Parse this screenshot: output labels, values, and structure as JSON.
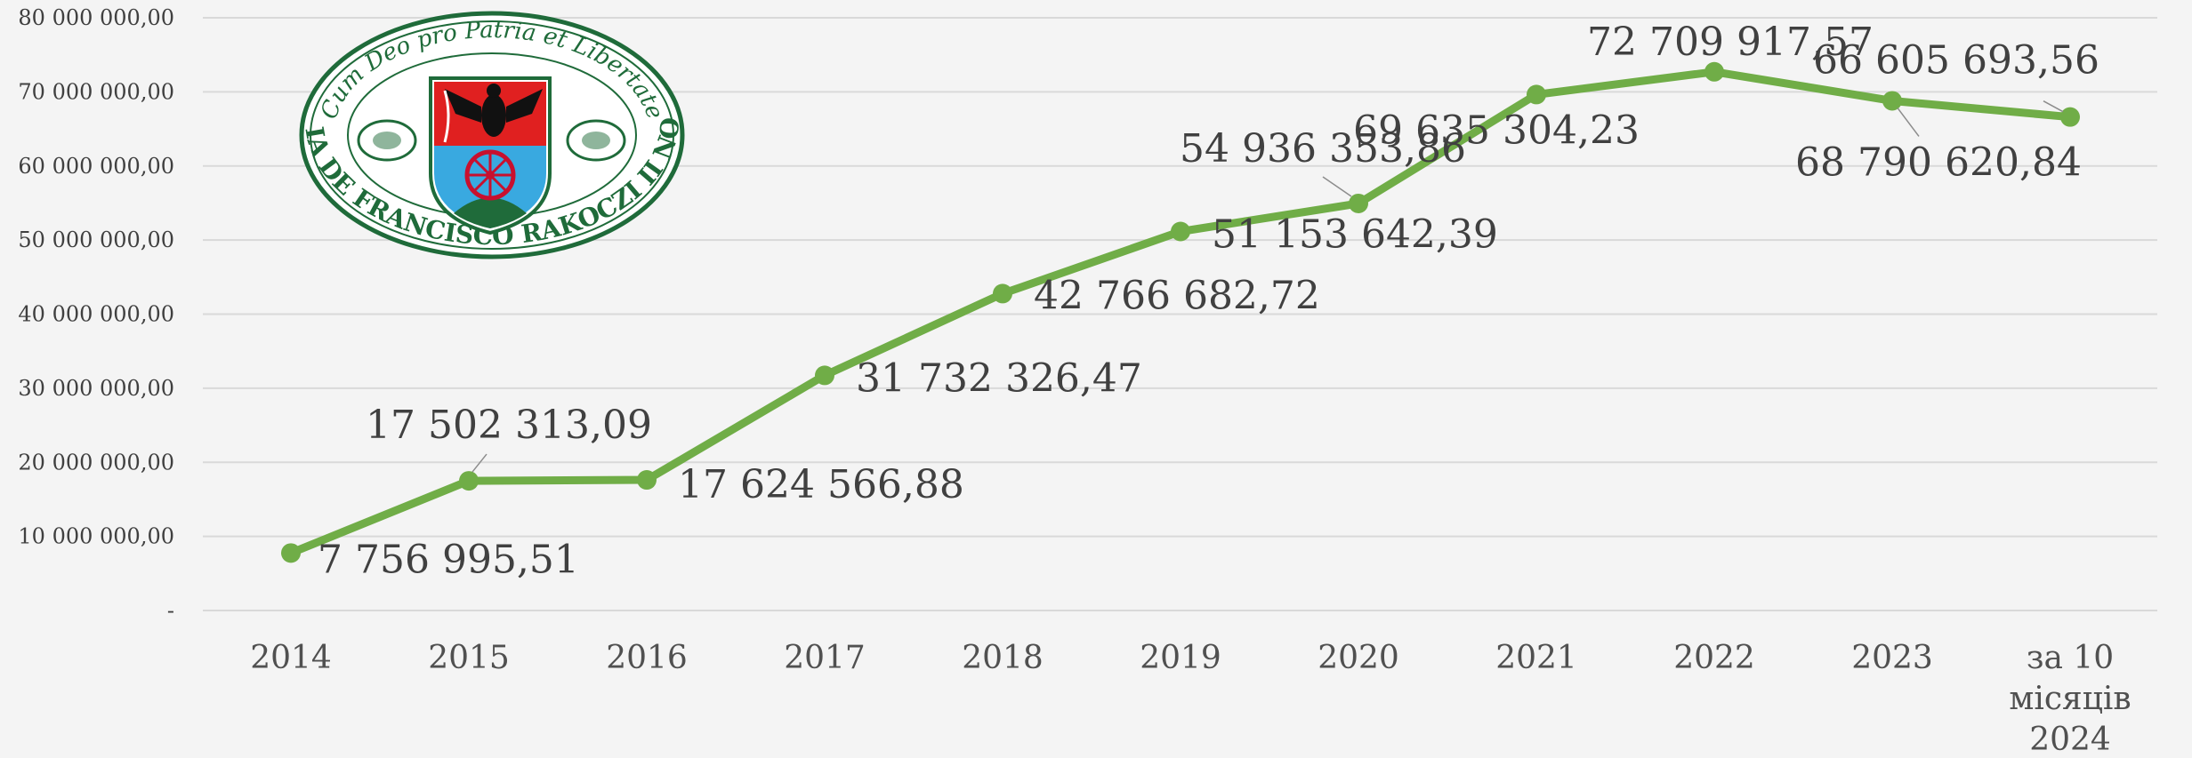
{
  "chart_data": {
    "type": "line",
    "title": "",
    "xlabel": "",
    "ylabel": "",
    "categories": [
      "2014",
      "2015",
      "2016",
      "2017",
      "2018",
      "2019",
      "2020",
      "2021",
      "2022",
      "2023",
      "за 10 місяців 2024"
    ],
    "series": [
      {
        "values": [
          7756995.51,
          17502313.09,
          17624566.88,
          31732326.47,
          42766682.72,
          51153642.39,
          54936353.86,
          69635304.23,
          72709917.57,
          68790620.84,
          66605693.56
        ],
        "labels": [
          "7 756 995,51",
          "17 502 313,09",
          "17 624 566,88",
          "31 732 326,47",
          "42 766 682,72",
          "51 153 642,39",
          "54 936 353,86",
          "69 635 304,23",
          "72 709 917,57",
          "68 790 620,84",
          "66 605 693,56"
        ],
        "color": "#70ad47"
      }
    ],
    "ylim": [
      0,
      80000000
    ],
    "y_ticks": [
      {
        "value": 0,
        "label": "-"
      },
      {
        "value": 10000000,
        "label": "10 000 000,00"
      },
      {
        "value": 20000000,
        "label": "20 000 000,00"
      },
      {
        "value": 30000000,
        "label": "30 000 000,00"
      },
      {
        "value": 40000000,
        "label": "40 000 000,00"
      },
      {
        "value": 50000000,
        "label": "50 000 000,00"
      },
      {
        "value": 60000000,
        "label": "60 000 000,00"
      },
      {
        "value": 70000000,
        "label": "70 000 000,00"
      },
      {
        "value": 80000000,
        "label": "80 000 000,00"
      }
    ],
    "grid": true,
    "legend": "none"
  },
  "logo": {
    "motto": "Cum Deo pro Patria et Libertate",
    "name": "ACADEMIA DE FRANCISCO RAKOCZI II NOMINATA"
  },
  "colors": {
    "line": "#70ad47",
    "logo_green": "#1f6b3a",
    "shield_red": "#e02020",
    "shield_blue": "#39a9e0",
    "background": "#f4f4f4"
  }
}
